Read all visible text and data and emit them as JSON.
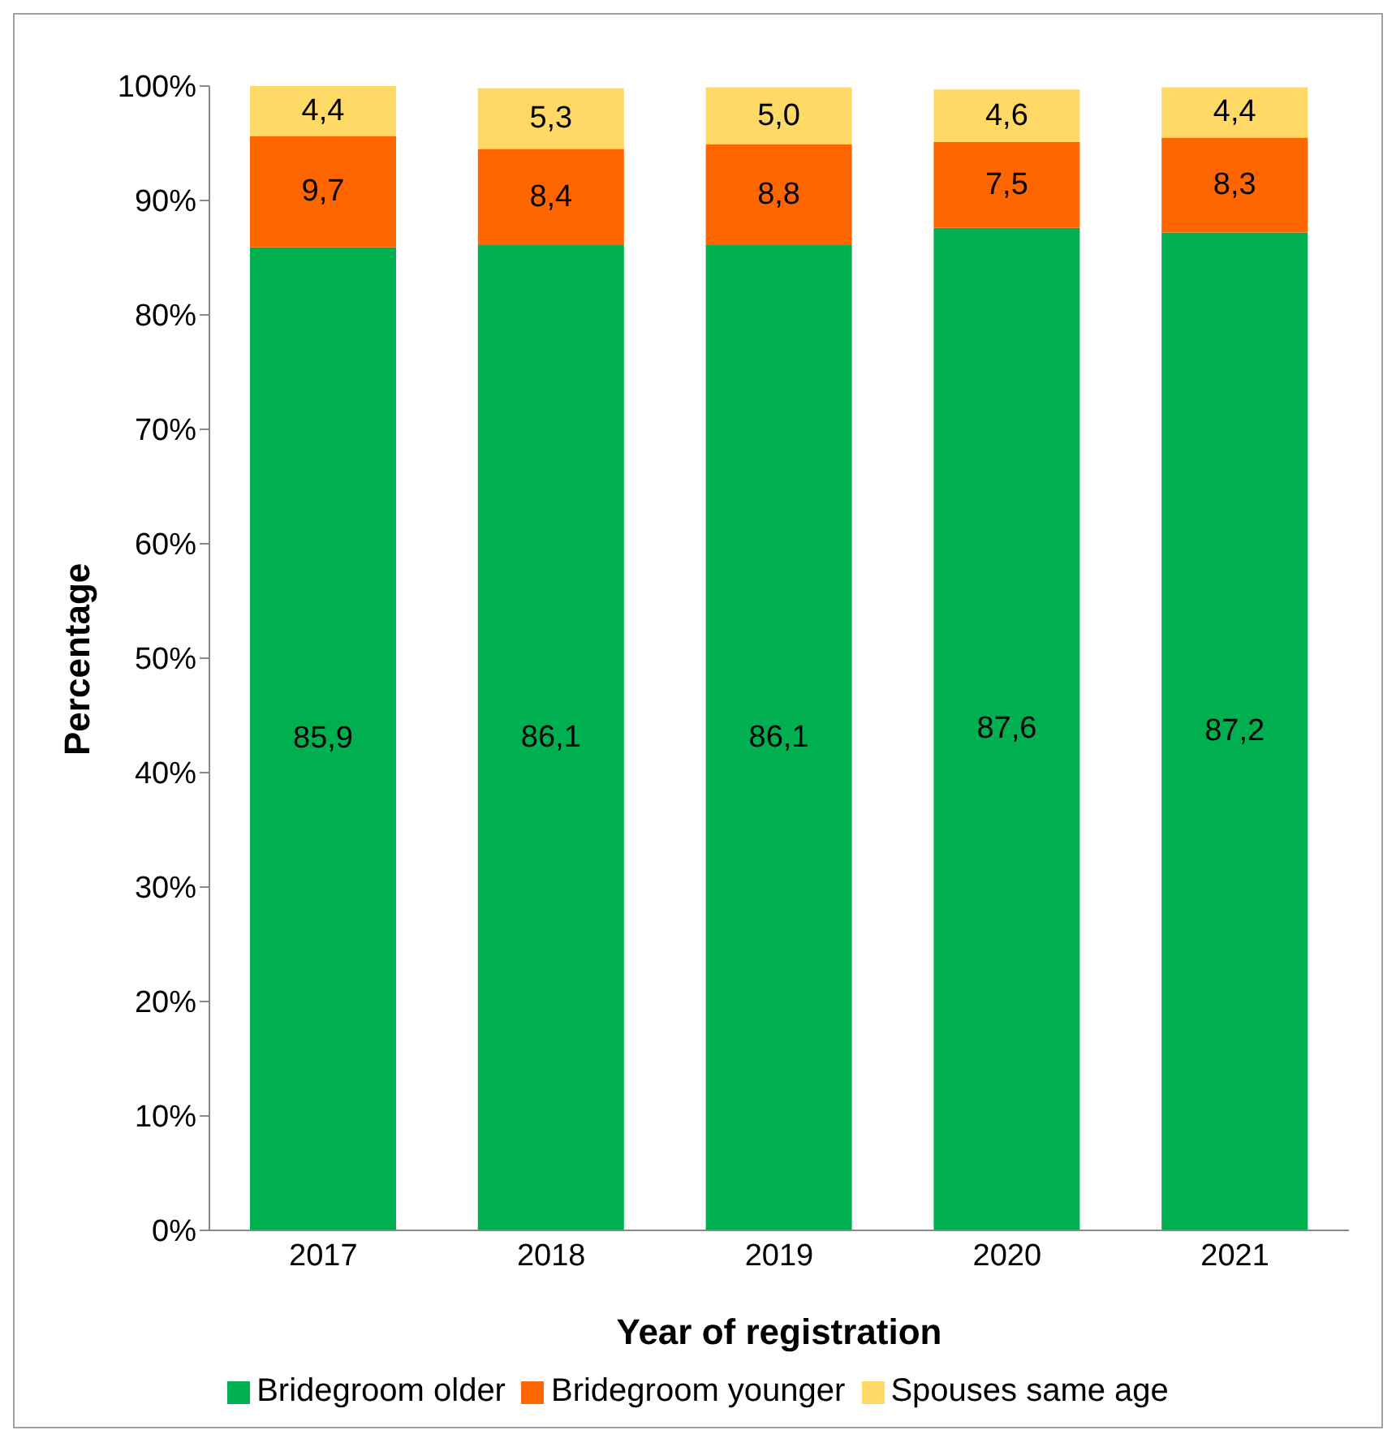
{
  "chart_data": {
    "type": "bar",
    "stacked": true,
    "xlabel": "Year of registration",
    "ylabel": "Percentage",
    "categories": [
      "2017",
      "2018",
      "2019",
      "2020",
      "2021"
    ],
    "series": [
      {
        "name": "Bridegroom older",
        "color": "#00b050",
        "values": [
          85.9,
          86.1,
          86.1,
          87.6,
          87.2
        ],
        "value_labels": [
          "85,9",
          "86,1",
          "86,1",
          "87,6",
          "87,2"
        ]
      },
      {
        "name": "Bridegroom younger",
        "color": "#ff6600",
        "values": [
          9.7,
          8.4,
          8.8,
          7.5,
          8.3
        ],
        "value_labels": [
          "9,7",
          "8,4",
          "8,8",
          "7,5",
          "8,3"
        ]
      },
      {
        "name": "Spouses same age",
        "color": "#ffd966",
        "values": [
          4.4,
          5.3,
          5.0,
          4.6,
          4.4
        ],
        "value_labels": [
          "4,4",
          "5,3",
          "5,0",
          "4,6",
          "4,4"
        ]
      }
    ],
    "ylim": [
      0,
      100
    ],
    "yticks": [
      {
        "value": 0,
        "label": "0%"
      },
      {
        "value": 10,
        "label": "10%"
      },
      {
        "value": 20,
        "label": "20%"
      },
      {
        "value": 30,
        "label": "30%"
      },
      {
        "value": 40,
        "label": "40%"
      },
      {
        "value": 50,
        "label": "50%"
      },
      {
        "value": 60,
        "label": "60%"
      },
      {
        "value": 70,
        "label": "70%"
      },
      {
        "value": 80,
        "label": "80%"
      },
      {
        "value": 90,
        "label": "90%"
      },
      {
        "value": 100,
        "label": "100%"
      }
    ],
    "grid": false,
    "legend": "bottom"
  }
}
